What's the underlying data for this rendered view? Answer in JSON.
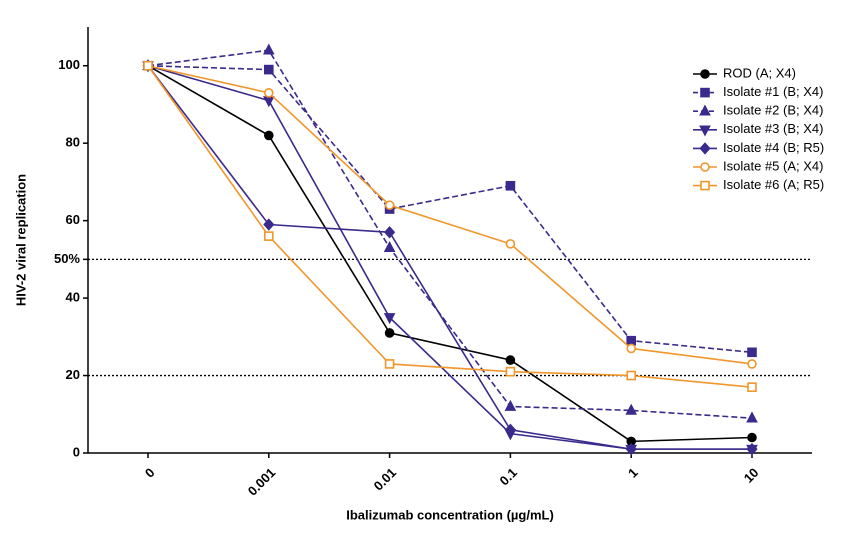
{
  "chart_data": {
    "type": "line",
    "x_label": "Ibalizumab concentration (µg/mL)",
    "y_label": "HIV-2 viral replication",
    "categories": [
      "0",
      "0.001",
      "0.01",
      "0.1",
      "1",
      "10"
    ],
    "ylim": [
      0,
      110
    ],
    "yticks": [
      0,
      20,
      40,
      {
        "value": 50,
        "label": "50%"
      },
      60,
      80,
      100
    ],
    "reference_lines": [
      50,
      20
    ],
    "legend": "upper right",
    "series": [
      {
        "name": "ROD (A; X4)",
        "color": "#000000",
        "marker": "circle",
        "filled": true,
        "dashed": false,
        "values": [
          100,
          82,
          31,
          24,
          3,
          4
        ]
      },
      {
        "name": "Isolate #1 (B; X4)",
        "color": "#3b2a8c",
        "marker": "square",
        "filled": true,
        "dashed": true,
        "values": [
          100,
          99,
          63,
          69,
          29,
          26
        ]
      },
      {
        "name": "Isolate #2 (B; X4)",
        "color": "#3b2a8c",
        "marker": "triangle-up",
        "filled": true,
        "dashed": true,
        "values": [
          100,
          104,
          53,
          12,
          11,
          9
        ]
      },
      {
        "name": "Isolate #3 (B; X4)",
        "color": "#3b2a8c",
        "marker": "triangle-down",
        "filled": true,
        "dashed": false,
        "values": [
          100,
          91,
          35,
          5,
          1,
          1
        ]
      },
      {
        "name": "Isolate #4 (B; R5)",
        "color": "#3b2a8c",
        "marker": "diamond",
        "filled": true,
        "dashed": false,
        "values": [
          100,
          59,
          57,
          6,
          1,
          1
        ]
      },
      {
        "name": "Isolate #5 (A; X4)",
        "color": "#f0962a",
        "marker": "circle",
        "filled": false,
        "dashed": false,
        "values": [
          100,
          93,
          64,
          54,
          27,
          23
        ]
      },
      {
        "name": "Isolate #6 (A; R5)",
        "color": "#f0962a",
        "marker": "square",
        "filled": false,
        "dashed": false,
        "values": [
          100,
          56,
          23,
          21,
          20,
          17
        ]
      }
    ]
  }
}
